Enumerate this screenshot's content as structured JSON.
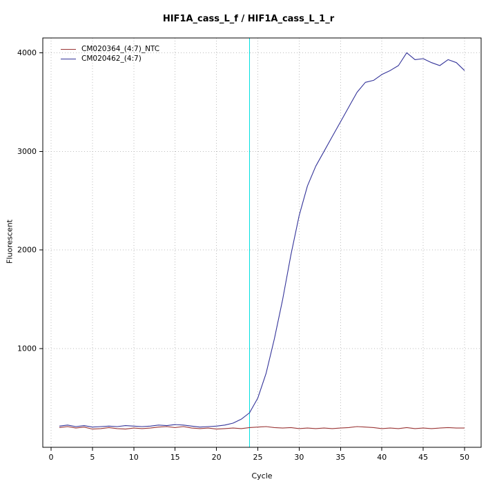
{
  "chart_data": {
    "type": "line",
    "title": "HIF1A_cass_L_f / HIF1A_cass_L_1_r",
    "xlabel": "Cycle",
    "ylabel": "Fluorescent",
    "xlim": [
      -1,
      52
    ],
    "ylim": [
      0,
      4150
    ],
    "x_ticks": [
      0,
      5,
      10,
      15,
      20,
      25,
      30,
      35,
      40,
      45,
      50
    ],
    "y_ticks": [
      1000,
      2000,
      3000,
      4000
    ],
    "grid": true,
    "grid_style": "dotted",
    "legend_position": "top-left",
    "plot_border_color": "#000000",
    "grid_color": "#bbbbbb",
    "threshold_line": {
      "x": 24,
      "color": "#00e0e0"
    },
    "x": [
      1,
      2,
      3,
      4,
      5,
      6,
      7,
      8,
      9,
      10,
      11,
      12,
      13,
      14,
      15,
      16,
      17,
      18,
      19,
      20,
      21,
      22,
      23,
      24,
      25,
      26,
      27,
      28,
      29,
      30,
      31,
      32,
      33,
      34,
      35,
      36,
      37,
      38,
      39,
      40,
      41,
      42,
      43,
      44,
      45,
      46,
      47,
      48,
      49,
      50
    ],
    "series": [
      {
        "name": "CM020364_(4:7)_NTC",
        "color": "#993333",
        "values": [
          200,
          210,
          195,
          205,
          185,
          190,
          200,
          190,
          185,
          195,
          190,
          195,
          205,
          210,
          200,
          210,
          195,
          190,
          195,
          185,
          190,
          195,
          190,
          200,
          205,
          210,
          200,
          195,
          200,
          190,
          195,
          190,
          195,
          190,
          195,
          200,
          210,
          205,
          200,
          190,
          195,
          190,
          200,
          190,
          195,
          190,
          195,
          200,
          195,
          195
        ]
      },
      {
        "name": "CM020462_(4:7)",
        "color": "#333399",
        "values": [
          215,
          225,
          210,
          220,
          205,
          210,
          215,
          210,
          220,
          215,
          210,
          215,
          225,
          220,
          230,
          225,
          215,
          205,
          210,
          215,
          225,
          245,
          285,
          350,
          500,
          750,
          1100,
          1500,
          1950,
          2350,
          2650,
          2850,
          3000,
          3150,
          3300,
          3450,
          3600,
          3700,
          3720,
          3780,
          3820,
          3870,
          4000,
          3930,
          3940,
          3900,
          3870,
          3930,
          3900,
          3820
        ]
      }
    ]
  }
}
